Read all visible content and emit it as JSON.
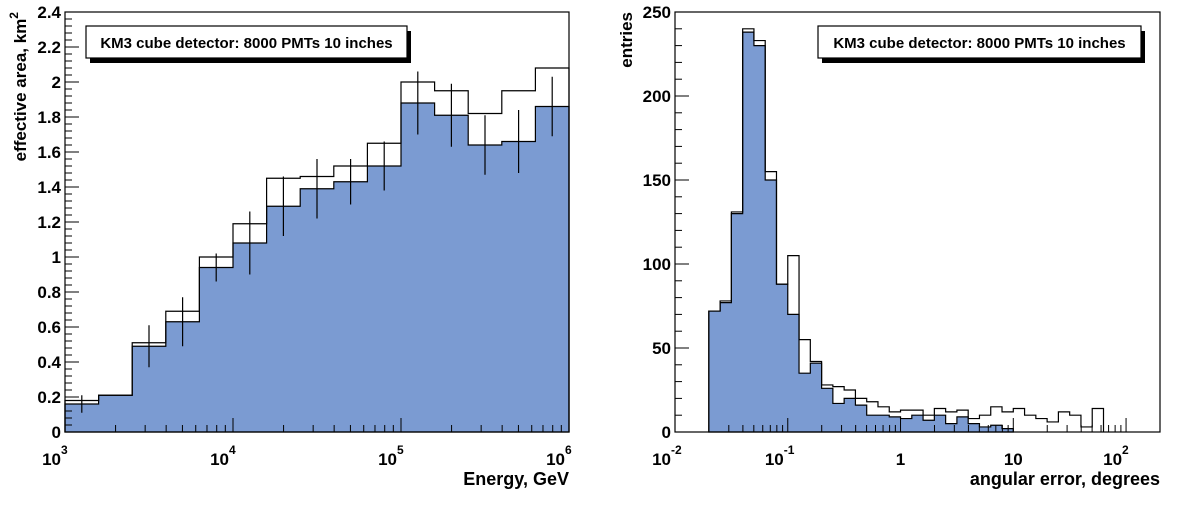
{
  "chart_data": [
    {
      "type": "histogram",
      "panel": "left",
      "legend_text": "KM3 cube detector: 8000 PMTs 10 inches",
      "legend_position": "top-left",
      "xlabel": "Energy, GeV",
      "ylabel": "effective area, km",
      "ylabel_sup": "2",
      "x_scale": "log",
      "xlim": [
        1000,
        1000000
      ],
      "ylim": [
        0,
        2.4
      ],
      "x_ticks": [
        {
          "value": 1000,
          "base": "10",
          "exp": "3"
        },
        {
          "value": 10000,
          "base": "10",
          "exp": "4"
        },
        {
          "value": 100000,
          "base": "10",
          "exp": "5"
        },
        {
          "value": 1000000,
          "base": "10",
          "exp": "6"
        }
      ],
      "y_ticks": [
        {
          "value": 0,
          "label": "0"
        },
        {
          "value": 0.2,
          "label": "0.2"
        },
        {
          "value": 0.4,
          "label": "0.4"
        },
        {
          "value": 0.6,
          "label": "0.6"
        },
        {
          "value": 0.8,
          "label": "0.8"
        },
        {
          "value": 1.0,
          "label": "1"
        },
        {
          "value": 1.2,
          "label": "1.2"
        },
        {
          "value": 1.4,
          "label": "1.4"
        },
        {
          "value": 1.6,
          "label": "1.6"
        },
        {
          "value": 1.8,
          "label": "1.8"
        },
        {
          "value": 2.0,
          "label": "2"
        },
        {
          "value": 2.2,
          "label": "2.2"
        },
        {
          "value": 2.4,
          "label": "2.4"
        }
      ],
      "bin_edges_log10": [
        3.0,
        3.2,
        3.4,
        3.6,
        3.8,
        4.0,
        4.2,
        4.4,
        4.6,
        4.8,
        5.0,
        5.2,
        5.4,
        5.6,
        5.8,
        6.0
      ],
      "series": [
        {
          "style": "outline",
          "values": [
            0.18,
            0.21,
            0.51,
            0.69,
            1.0,
            1.19,
            1.45,
            1.46,
            1.52,
            1.65,
            2.0,
            1.95,
            1.82,
            1.95,
            2.08
          ]
        },
        {
          "style": "filled",
          "color": "#7b9bd2",
          "values": [
            0.16,
            0.21,
            0.49,
            0.63,
            0.94,
            1.08,
            1.29,
            1.39,
            1.43,
            1.52,
            1.88,
            1.81,
            1.64,
            1.66,
            1.86
          ]
        }
      ],
      "error_bars": [
        0.05,
        0.0,
        0.12,
        0.14,
        0.08,
        0.18,
        0.17,
        0.17,
        0.13,
        0.14,
        0.18,
        0.18,
        0.17,
        0.18,
        0.17
      ]
    },
    {
      "type": "histogram",
      "panel": "right",
      "legend_text": "KM3 cube detector: 8000 PMTs 10 inches",
      "legend_position": "top-right",
      "xlabel": "angular error, degrees",
      "ylabel": "entries",
      "x_scale": "log",
      "xlim": [
        0.01,
        200
      ],
      "ylim": [
        0,
        250
      ],
      "x_ticks": [
        {
          "value": 0.01,
          "base": "10",
          "exp": "-2"
        },
        {
          "value": 0.1,
          "base": "10",
          "exp": "-1"
        },
        {
          "value": 1,
          "base": "1",
          "exp": ""
        },
        {
          "value": 10,
          "base": "10",
          "exp": ""
        },
        {
          "value": 100,
          "base": "10",
          "exp": "2"
        }
      ],
      "y_ticks": [
        {
          "value": 0,
          "label": "0"
        },
        {
          "value": 50,
          "label": "50"
        },
        {
          "value": 100,
          "label": "100"
        },
        {
          "value": 150,
          "label": "150"
        },
        {
          "value": 200,
          "label": "200"
        },
        {
          "value": 250,
          "label": "250"
        }
      ],
      "bin_width_log10": 0.1,
      "series": [
        {
          "style": "outline",
          "first_bin_log10": -1.7,
          "values": [
            72,
            78,
            131,
            240,
            233,
            155,
            88,
            105,
            55,
            42,
            28,
            27,
            25,
            20,
            18,
            15,
            12,
            13,
            13,
            10,
            14,
            12,
            13,
            8,
            10,
            15,
            12,
            14,
            10,
            8,
            6,
            12,
            10,
            3,
            14
          ]
        },
        {
          "style": "filled",
          "color": "#7b9bd2",
          "first_bin_log10": -1.7,
          "values": [
            72,
            77,
            130,
            238,
            230,
            150,
            88,
            70,
            35,
            41,
            26,
            17,
            20,
            16,
            10,
            10,
            9,
            8,
            10,
            7,
            10,
            5,
            9,
            5,
            3,
            4,
            2
          ]
        }
      ]
    }
  ]
}
